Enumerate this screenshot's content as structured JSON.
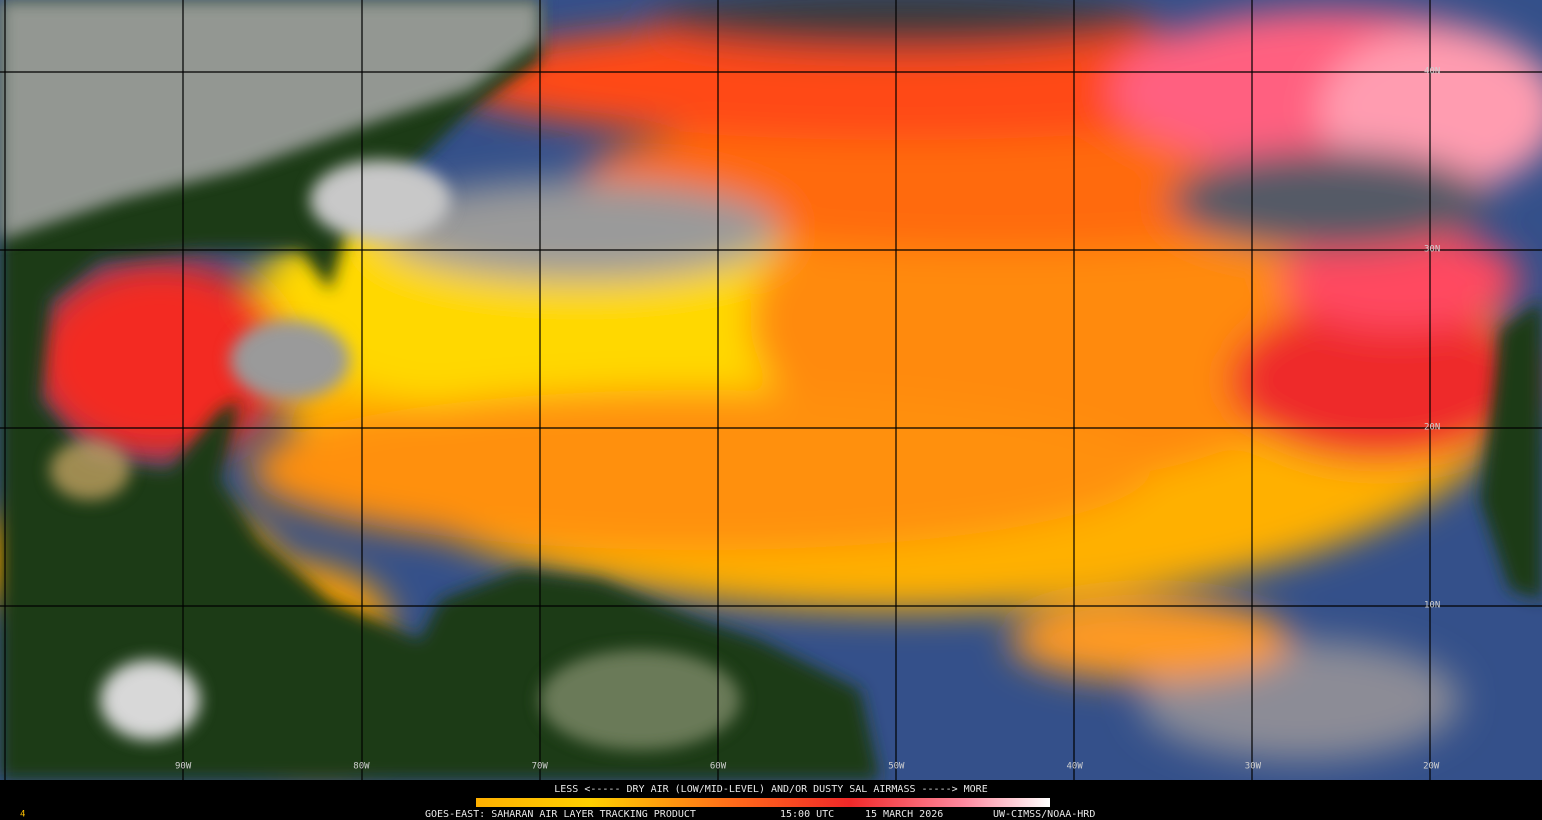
{
  "map": {
    "lat_labels": [
      "40N",
      "30N",
      "20N",
      "10N"
    ],
    "lon_labels": [
      "90W",
      "80W",
      "70W",
      "60W",
      "50W",
      "40W",
      "30W",
      "20W"
    ]
  },
  "legend": {
    "caption": "LESS <----- DRY AIR (LOW/MID-LEVEL) AND/OR DUSTY SAL AIRMASS -----> MORE",
    "product": "GOES-EAST: SAHARAN AIR LAYER TRACKING PRODUCT",
    "time": "15:00 UTC",
    "date": "15 MARCH 2026",
    "credit": "UW-CIMSS/NOAA-HRD"
  },
  "corner_mark": "4"
}
